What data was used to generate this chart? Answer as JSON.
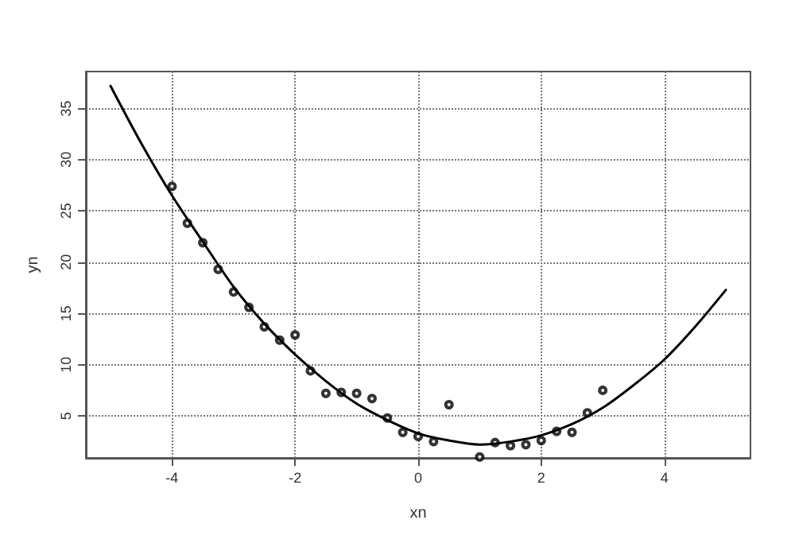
{
  "chart_data": {
    "type": "scatter",
    "xlabel": "xn",
    "ylabel": "yn",
    "xlim": [
      -5.4,
      5.4
    ],
    "ylim": [
      0.9,
      38.6
    ],
    "xticks": [
      -4,
      -2,
      0,
      2,
      4
    ],
    "yticks": [
      5,
      10,
      15,
      20,
      25,
      30,
      35
    ],
    "grid": true,
    "marker": "circle",
    "series": [
      {
        "color": "#000000",
        "x": [
          -4,
          -3.75,
          -3.5,
          -3.25,
          -3,
          -2.75,
          -2.5,
          -2.25,
          -2,
          -1.75,
          -1.5,
          -1.25,
          -1,
          -0.75,
          -0.5,
          -0.25,
          0,
          0.25,
          0.5,
          1,
          1.25,
          1.5,
          1.75,
          2,
          2.25,
          2.5,
          2.75,
          3
        ],
        "values": [
          27.4,
          23.8,
          21.9,
          19.3,
          17.1,
          15.6,
          13.7,
          12.4,
          12.9,
          9.4,
          7.2,
          7.3,
          7.2,
          6.7,
          4.8,
          3.4,
          3.0,
          2.5,
          6.1,
          1.0,
          2.4,
          2.1,
          2.2,
          2.6,
          3.5,
          3.4,
          5.3,
          7.5
        ]
      },
      {
        "type": "line",
        "color": "#000000",
        "marker": "none",
        "line_style": "solid",
        "x": [
          -5,
          -4.5,
          -4,
          -3.5,
          -3,
          -2.5,
          -2,
          -1.5,
          -1,
          -0.5,
          0,
          0.5,
          1,
          1.5,
          2,
          2.5,
          3,
          3.5,
          4,
          4.5,
          5
        ],
        "values": [
          37.2,
          31.6,
          26.5,
          22,
          17.6,
          14,
          11,
          8.4,
          6.2,
          4.6,
          3.3,
          2.6,
          2.2,
          2.5,
          3.1,
          4.2,
          5.8,
          8,
          10.5,
          13.7,
          17.3
        ]
      }
    ]
  }
}
